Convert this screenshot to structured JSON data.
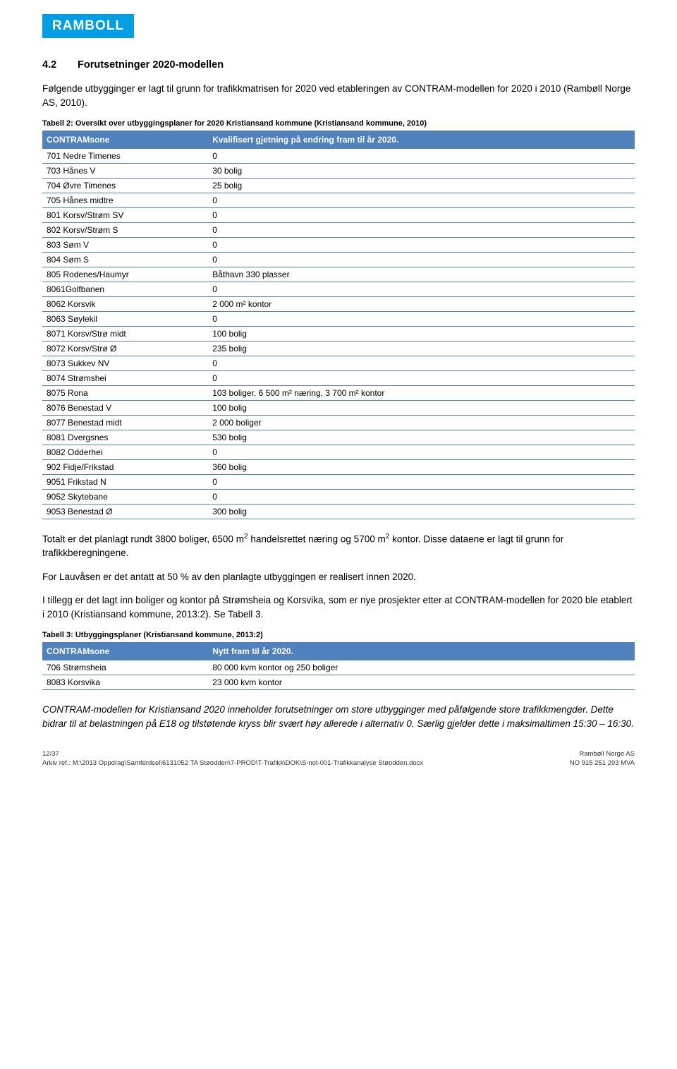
{
  "logo": "RAMBOLL",
  "section": {
    "number": "4.2",
    "title": "Forutsetninger 2020-modellen"
  },
  "intro": "Følgende utbygginger er lagt til grunn for trafikkmatrisen for 2020 ved etableringen av CONTRAM-modellen for 2020 i 2010 (Rambøll Norge AS, 2010).",
  "table2": {
    "caption": "Tabell 2: Oversikt over utbyggingsplaner for 2020 Kristiansand kommune (Kristiansand kommune, 2010)",
    "headers": [
      "CONTRAMsone",
      "Kvalifisert gjetning på endring fram til år 2020."
    ],
    "rows": [
      [
        "701 Nedre Timenes",
        "0"
      ],
      [
        "703 Hånes V",
        "30 bolig"
      ],
      [
        "704 Øvre Timenes",
        "25 bolig"
      ],
      [
        "705 Hånes midtre",
        "0"
      ],
      [
        "801 Korsv/Strøm SV",
        "0"
      ],
      [
        "802 Korsv/Strøm S",
        "0"
      ],
      [
        "803 Søm V",
        "0"
      ],
      [
        "804 Søm S",
        "0"
      ],
      [
        "805 Rodenes/Haumyr",
        "Båthavn 330 plasser"
      ],
      [
        "8061Golfbanen",
        "0"
      ],
      [
        "8062 Korsvik",
        "2 000 m² kontor"
      ],
      [
        "8063 Søylekil",
        "0"
      ],
      [
        "8071 Korsv/Strø midt",
        "100 bolig"
      ],
      [
        "8072 Korsv/Strø Ø",
        "235 bolig"
      ],
      [
        "8073 Sukkev NV",
        "0"
      ],
      [
        "8074 Strømshei",
        "0"
      ],
      [
        "8075 Rona",
        "103 boliger, 6 500 m² næring, 3 700 m² kontor"
      ],
      [
        "8076 Benestad V",
        "100 bolig"
      ],
      [
        "8077 Benestad midt",
        "2 000 boliger"
      ],
      [
        "8081 Dvergsnes",
        "530 bolig"
      ],
      [
        "8082 Odderhei",
        "0"
      ],
      [
        "902 Fidje/Frikstad",
        "360 bolig"
      ],
      [
        "9051 Frikstad N",
        "0"
      ],
      [
        "9052 Skytebane",
        "0"
      ],
      [
        "9053 Benestad Ø",
        "300 bolig"
      ]
    ]
  },
  "para1a": "Totalt er det planlagt rundt 3800 boliger, 6500 m",
  "para1b": " handelsrettet næring og 5700 m",
  "para1c": " kontor. Disse dataene er lagt til grunn for trafikkberegningene.",
  "para2": "For Lauvåsen er det antatt at 50 % av den planlagte utbyggingen er realisert innen 2020.",
  "para3": "I tillegg er det lagt inn boliger og kontor på Strømsheia og Korsvika, som er nye prosjekter etter at CONTRAM-modellen for 2020 ble etablert i 2010 (Kristiansand kommune, 2013:2). Se Tabell 3.",
  "table3": {
    "caption": "Tabell 3: Utbyggingsplaner (Kristiansand kommune, 2013:2)",
    "headers": [
      "CONTRAMsone",
      "Nytt fram til år 2020."
    ],
    "rows": [
      [
        "706 Strømsheia",
        "80 000 kvm kontor og 250 boliger"
      ],
      [
        "8083 Korsvika",
        "23 000 kvm kontor"
      ]
    ]
  },
  "italicPara": "CONTRAM-modellen for Kristiansand 2020 inneholder forutsetninger om store utbygginger med påfølgende store trafikkmengder. Dette bidrar til at belastningen på E18 og tilstøtende kryss blir svært høy allerede i alternativ 0. Særlig gjelder dette i maksimaltimen 15:30 – 16:30.",
  "footer": {
    "page": "12/37",
    "archive": "Arkiv ref.: M:\\2013 Oppdrag\\Samferdsel\\6131052 TA Støodden\\7-PROD\\T-Trafikk\\DOK\\S-not-001-Trafikkanalyse Støodden.docx",
    "company": "Rambøll Norge AS",
    "orgno": "NO 915 251 293 MVA"
  },
  "sup2": "2"
}
